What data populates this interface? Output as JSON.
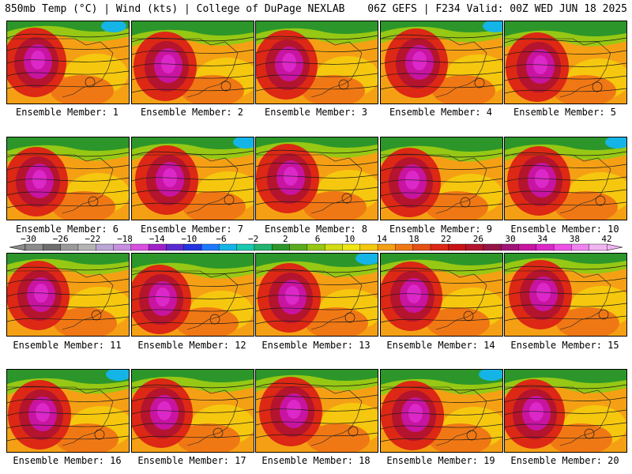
{
  "header": {
    "left": "850mb Temp (°C) | Wind (kts) | College of DuPage NEXLAB",
    "right": "06Z GEFS | F234 Valid: 00Z WED JUN 18 2025"
  },
  "panels": [
    {
      "label": "Ensemble Member: 1"
    },
    {
      "label": "Ensemble Member: 2"
    },
    {
      "label": "Ensemble Member: 3"
    },
    {
      "label": "Ensemble Member: 4"
    },
    {
      "label": "Ensemble Member: 5"
    },
    {
      "label": "Ensemble Member: 6"
    },
    {
      "label": "Ensemble Member: 7"
    },
    {
      "label": "Ensemble Member: 8"
    },
    {
      "label": "Ensemble Member: 9"
    },
    {
      "label": "Ensemble Member: 10"
    },
    {
      "label": "Ensemble Member: 11"
    },
    {
      "label": "Ensemble Member: 12"
    },
    {
      "label": "Ensemble Member: 13"
    },
    {
      "label": "Ensemble Member: 14"
    },
    {
      "label": "Ensemble Member: 15"
    },
    {
      "label": "Ensemble Member: 16"
    },
    {
      "label": "Ensemble Member: 17"
    },
    {
      "label": "Ensemble Member: 18"
    },
    {
      "label": "Ensemble Member: 19"
    },
    {
      "label": "Ensemble Member: 20"
    }
  ],
  "colorbar": {
    "ticks": [
      "-30",
      "-26",
      "-22",
      "-18",
      "-14",
      "-10",
      "-6",
      "-2",
      "2",
      "6",
      "10",
      "14",
      "18",
      "22",
      "26",
      "30",
      "34",
      "38",
      "42"
    ],
    "colors": [
      "#8c8c8c",
      "#6e6e6e",
      "#9a9a9a",
      "#b4b4b4",
      "#b9a6d6",
      "#c78fe0",
      "#d94fe0",
      "#a020c8",
      "#5a2ad0",
      "#2434e0",
      "#1e78ff",
      "#14b4e6",
      "#18c8b0",
      "#20b46e",
      "#2c962a",
      "#5aaa1e",
      "#96c814",
      "#d2dc14",
      "#f0e614",
      "#f5c80f",
      "#f5a014",
      "#f07814",
      "#e65014",
      "#dc2814",
      "#c81414",
      "#b4142d",
      "#961446",
      "#a01478",
      "#c814a0",
      "#dc28c8",
      "#f050e6",
      "#f082f0",
      "#f0b4f0"
    ]
  }
}
